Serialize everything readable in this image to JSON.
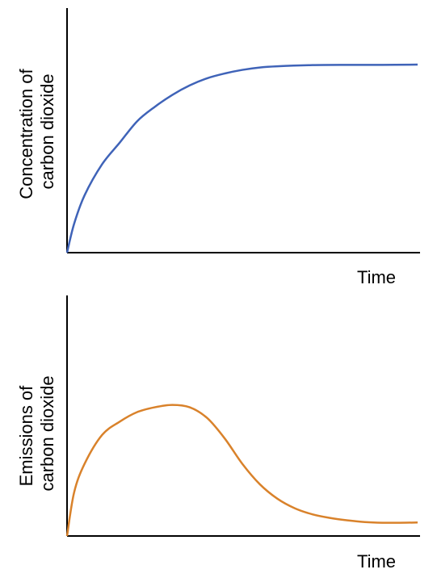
{
  "chart_data": [
    {
      "type": "line",
      "xlabel": "Time",
      "ylabel_lines": [
        "Concentration of",
        "carbon dioxide"
      ],
      "xlim": [
        0,
        100
      ],
      "ylim": [
        0,
        100
      ],
      "grid": false,
      "color": "#3f63b8",
      "series": [
        {
          "x": [
            0,
            2,
            5,
            10,
            15,
            20,
            25,
            30,
            35,
            40,
            45,
            50,
            55,
            60,
            70,
            80,
            90,
            100
          ],
          "y": [
            0,
            12,
            24,
            37,
            46,
            55,
            61,
            66,
            70,
            73,
            75,
            76.5,
            77.5,
            78,
            78.5,
            78.6,
            78.6,
            78.7
          ]
        }
      ]
    },
    {
      "type": "line",
      "xlabel": "Time",
      "ylabel_lines": [
        "Emissions of",
        "carbon dioxide"
      ],
      "xlim": [
        0,
        100
      ],
      "ylim": [
        0,
        100
      ],
      "grid": false,
      "color": "#d9822b",
      "series": [
        {
          "x": [
            0,
            2,
            5,
            10,
            15,
            20,
            25,
            30,
            35,
            40,
            45,
            50,
            55,
            60,
            65,
            70,
            75,
            80,
            85,
            90,
            95,
            100
          ],
          "y": [
            0,
            18,
            30,
            42,
            47.5,
            51.5,
            53.5,
            54.5,
            53.5,
            49,
            40.5,
            30,
            21.5,
            15.5,
            11.5,
            9,
            7.5,
            6.5,
            5.8,
            5.5,
            5.5,
            5.6
          ]
        }
      ]
    }
  ]
}
